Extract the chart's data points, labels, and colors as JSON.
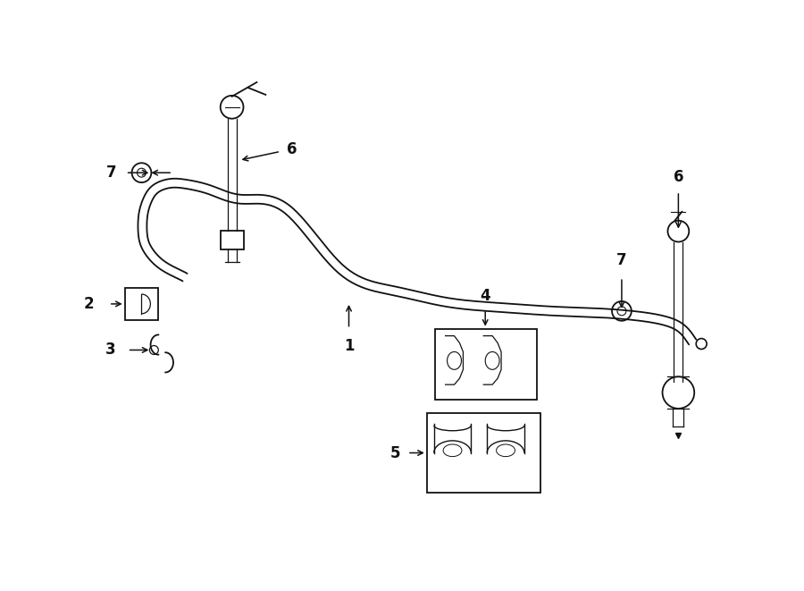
{
  "bg_color": "#ffffff",
  "line_color": "#111111",
  "figsize": [
    9.0,
    6.61
  ],
  "dpi": 100,
  "bar_lw": 2.0,
  "part_lw": 1.3,
  "label_fontsize": 12
}
